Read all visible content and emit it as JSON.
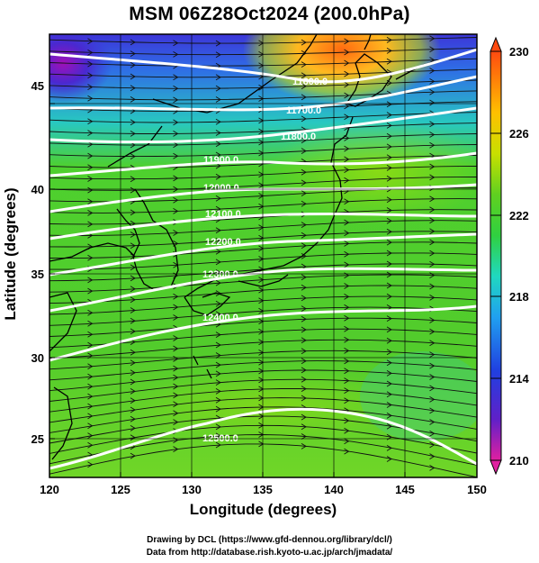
{
  "title": "MSM 06Z28Oct2024 (200.0hPa)",
  "xlabel": "Longitude (degrees)",
  "ylabel": "Latitude  (degrees)",
  "x_ticks": [
    "120",
    "125",
    "130",
    "135",
    "140",
    "145",
    "150"
  ],
  "y_ticks": [
    "25",
    "30",
    "35",
    "40",
    "45"
  ],
  "colorbar": {
    "ticks": [
      "230",
      "226",
      "222",
      "218",
      "214",
      "210"
    ],
    "min": 210,
    "max": 230
  },
  "contours": [
    {
      "label": "11600.0"
    },
    {
      "label": "11700.0"
    },
    {
      "label": "11800.0"
    },
    {
      "label": "11900.0"
    },
    {
      "label": "12000.0"
    },
    {
      "label": "12100.0"
    },
    {
      "label": "12200.0"
    },
    {
      "label": "12300.0"
    },
    {
      "label": "12400.0"
    },
    {
      "label": "12500.0"
    }
  ],
  "credits": {
    "line1": "Drawing by DCL (https://www.gfd-dennou.org/library/dcl/)",
    "line2": "Data from http://database.rish.kyoto-u.ac.jp/arch/jmadata/"
  },
  "colors": {
    "cold": "#3a2ad0",
    "cool": "#30c8e0",
    "mid": "#40d020",
    "warm": "#a8e000",
    "hot": "#ff7a10"
  }
}
